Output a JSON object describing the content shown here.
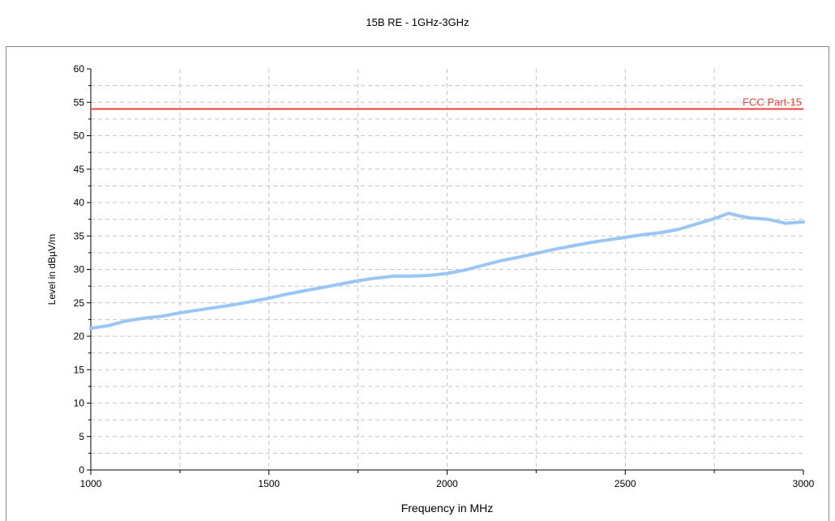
{
  "chart_data": {
    "type": "line",
    "title": "15B RE - 1GHz-3GHz",
    "xlabel": "Frequency in MHz",
    "ylabel": "Level in dBµV/m",
    "xlim": [
      1000,
      3000
    ],
    "ylim": [
      0,
      60
    ],
    "x_ticks": [
      1000,
      1500,
      2000,
      2500,
      3000
    ],
    "y_ticks": [
      0,
      5,
      10,
      15,
      20,
      25,
      30,
      35,
      40,
      45,
      50,
      55,
      60
    ],
    "grid": true,
    "series": [
      {
        "values_xy": [
          [
            1000,
            21.2
          ],
          [
            1050,
            21.6
          ],
          [
            1100,
            22.3
          ],
          [
            1150,
            22.7
          ],
          [
            1200,
            23.0
          ],
          [
            1250,
            23.5
          ],
          [
            1300,
            23.9
          ],
          [
            1350,
            24.3
          ],
          [
            1400,
            24.7
          ],
          [
            1450,
            25.2
          ],
          [
            1500,
            25.7
          ],
          [
            1550,
            26.3
          ],
          [
            1600,
            26.8
          ],
          [
            1650,
            27.3
          ],
          [
            1700,
            27.8
          ],
          [
            1750,
            28.3
          ],
          [
            1800,
            28.7
          ],
          [
            1850,
            29.0
          ],
          [
            1900,
            29.0
          ],
          [
            1950,
            29.1
          ],
          [
            2000,
            29.4
          ],
          [
            2050,
            29.9
          ],
          [
            2100,
            30.6
          ],
          [
            2150,
            31.3
          ],
          [
            2200,
            31.8
          ],
          [
            2250,
            32.4
          ],
          [
            2300,
            33.0
          ],
          [
            2350,
            33.5
          ],
          [
            2400,
            34.0
          ],
          [
            2450,
            34.4
          ],
          [
            2500,
            34.8
          ],
          [
            2550,
            35.2
          ],
          [
            2600,
            35.5
          ],
          [
            2650,
            36.0
          ],
          [
            2700,
            36.8
          ],
          [
            2750,
            37.6
          ],
          [
            2790,
            38.4
          ],
          [
            2820,
            38.0
          ],
          [
            2850,
            37.7
          ],
          [
            2900,
            37.5
          ],
          [
            2950,
            36.9
          ],
          [
            3000,
            37.1
          ]
        ],
        "color": "#99c6f5"
      },
      {
        "name": "FCC Part-15",
        "values_xy": [
          [
            1000,
            54
          ],
          [
            3000,
            54
          ]
        ],
        "color": "#e8403a"
      }
    ]
  }
}
